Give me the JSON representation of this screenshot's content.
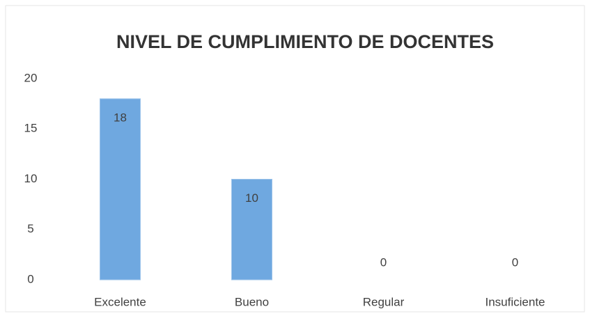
{
  "chart_data": {
    "type": "bar",
    "title": "NIVEL DE CUMPLIMIENTO DE DOCENTES",
    "categories": [
      "Excelente",
      "Bueno",
      "Regular",
      "Insuficiente"
    ],
    "values": [
      18,
      10,
      0,
      0
    ],
    "color": "#6fa8e0",
    "ylim": [
      0,
      20
    ],
    "yticks": [
      0,
      5,
      10,
      15,
      20
    ],
    "grid": false
  }
}
